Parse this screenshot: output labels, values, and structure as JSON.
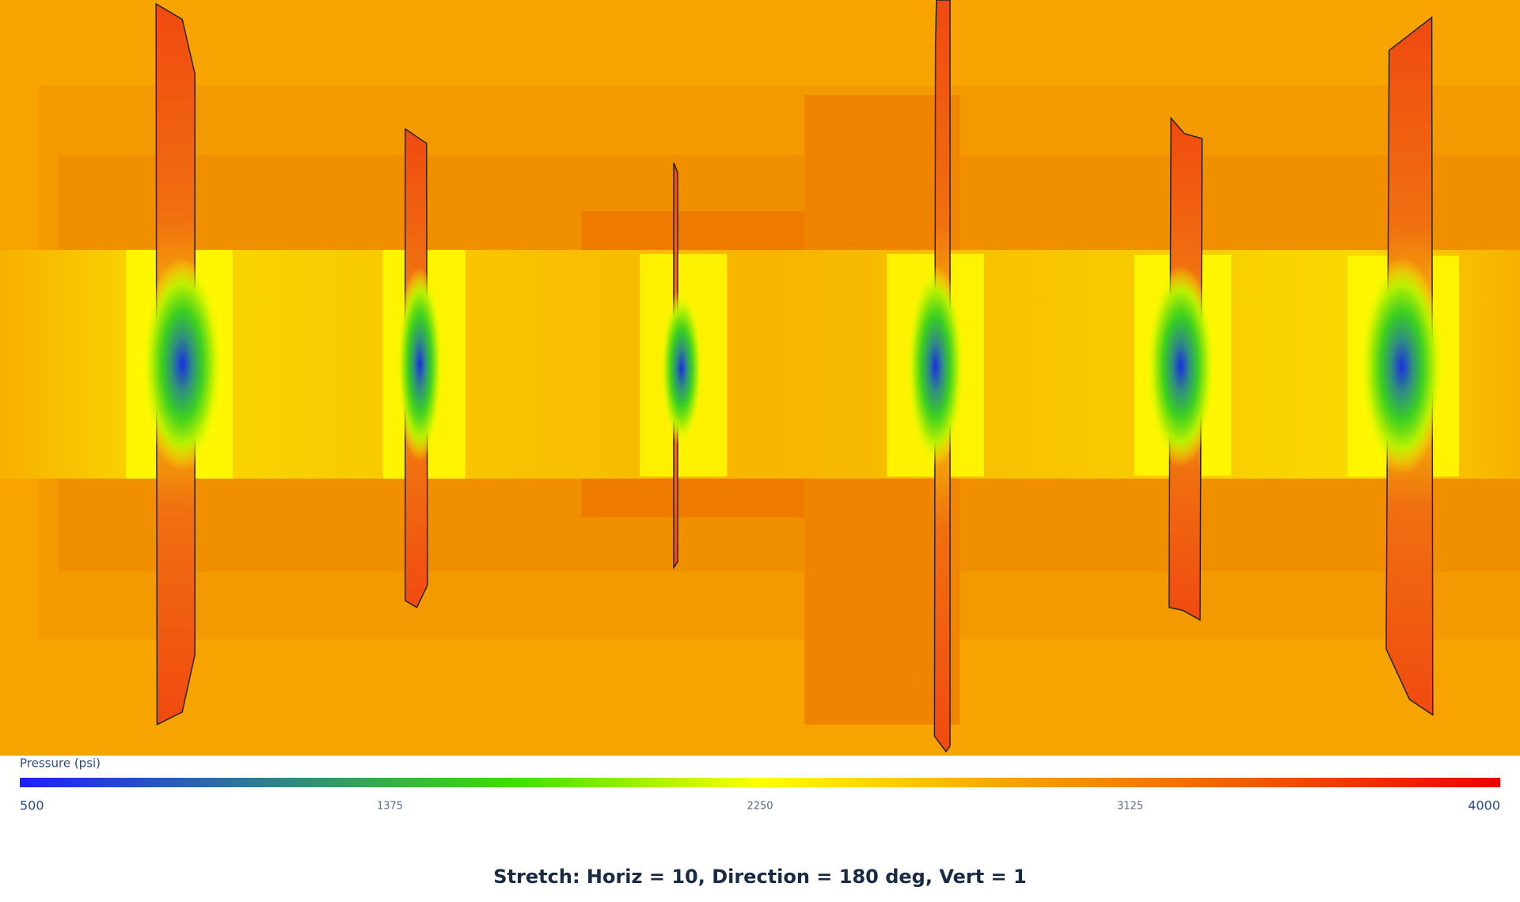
{
  "colorbar": {
    "title": "Pressure (psi)",
    "lim": [
      500,
      4000
    ],
    "ticks": [
      500,
      1375,
      2250,
      3125,
      4000
    ],
    "colors": [
      "#1f1fff",
      "#2f7f8f",
      "#3ce000",
      "#ffff00",
      "#f6a400",
      "#f05a00",
      "#f00000"
    ]
  },
  "caption": "Stretch: Horiz = 10, Direction = 180 deg, Vert = 1"
}
